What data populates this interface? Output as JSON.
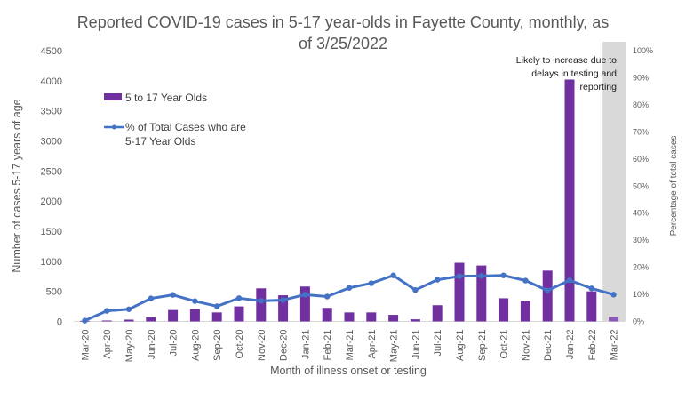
{
  "chart_data": {
    "type": "bar+line",
    "title_lines": [
      "Reported COVID-19 cases in 5-17 year-olds in Fayette County, monthly, as",
      "of 3/25/2022"
    ],
    "xlabel": "Month of illness onset or testing",
    "ylabel": "Number of cases 5-17 years of age",
    "y2label": "Percentage of total cases",
    "ylim": [
      0,
      4500
    ],
    "y2lim": [
      0,
      100
    ],
    "yticks": [
      "0",
      "500",
      "1000",
      "1500",
      "2000",
      "2500",
      "3000",
      "3500",
      "4000",
      "4500"
    ],
    "y2ticks": [
      "0%",
      "10%",
      "20%",
      "30%",
      "40%",
      "50%",
      "60%",
      "70%",
      "80%",
      "90%",
      "100%"
    ],
    "grid": false,
    "categories": [
      "Mar-20",
      "Apr-20",
      "May-20",
      "Jun-20",
      "Jul-20",
      "Aug-20",
      "Sep-20",
      "Oct-20",
      "Nov-20",
      "Dec-20",
      "Jan-21",
      "Feb-21",
      "Mar-21",
      "Apr-21",
      "May-21",
      "Jun-21",
      "Jul-21",
      "Aug-21",
      "Sep-21",
      "Oct-21",
      "Nov-21",
      "Dec-21",
      "Jan-22",
      "Feb-22",
      "Mar-22"
    ],
    "series": [
      {
        "name": "5 to 17 Year Olds",
        "type": "bar",
        "axis": "left",
        "color": "#7030A0",
        "values": [
          10,
          15,
          30,
          70,
          190,
          205,
          150,
          250,
          550,
          435,
          580,
          225,
          150,
          150,
          110,
          35,
          270,
          975,
          930,
          385,
          340,
          845,
          4020,
          500,
          75
        ]
      },
      {
        "name": "% of Total Cases who are 5-17 Year Olds",
        "legend_lines": [
          "% of Total Cases who are",
          "5-17 Year Olds"
        ],
        "type": "line",
        "axis": "right",
        "color": "#4472C4",
        "values": [
          0.3,
          3.9,
          4.5,
          8.5,
          9.8,
          7.5,
          5.6,
          8.6,
          7.6,
          7.9,
          9.9,
          9.2,
          12.4,
          14.1,
          17.0,
          11.6,
          15.4,
          16.7,
          16.8,
          17.0,
          15.1,
          11.4,
          15.2,
          12.2,
          9.9
        ]
      }
    ],
    "legend_position": "top-left",
    "shaded_categories": [
      "Mar-22"
    ],
    "shade_color": "#D9D9D9",
    "annotation_lines": [
      "Likely to increase due to",
      "delays in testing and",
      "reporting"
    ]
  }
}
